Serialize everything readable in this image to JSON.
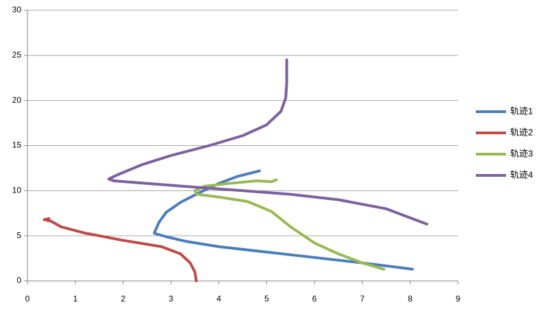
{
  "chart_data": {
    "type": "line",
    "xlim": [
      0,
      9
    ],
    "xticks": [
      0,
      1,
      2,
      3,
      4,
      5,
      6,
      7,
      8,
      9
    ],
    "ylim": [
      0,
      30
    ],
    "yticks": [
      0,
      5,
      10,
      15,
      20,
      25,
      30
    ],
    "grid": true,
    "legend": "right",
    "series": [
      {
        "name": "轨迹1",
        "color": "#4a7ebb",
        "x": [
          8.05,
          7,
          6,
          5,
          4,
          3.3,
          2.9,
          2.7,
          2.65,
          2.75,
          2.9,
          3.2,
          3.6,
          4.0,
          4.4,
          4.85
        ],
        "values": [
          1.3,
          2.0,
          2.6,
          3.2,
          3.8,
          4.4,
          4.9,
          5.2,
          5.3,
          6.5,
          7.6,
          8.7,
          9.8,
          10.8,
          11.6,
          12.2
        ]
      },
      {
        "name": "轨迹2",
        "color": "#be4b48",
        "x": [
          3.53,
          3.5,
          3.4,
          3.2,
          2.8,
          2.0,
          1.2,
          0.7,
          0.5,
          0.35,
          0.45
        ],
        "values": [
          0,
          1,
          2,
          3,
          3.8,
          4.5,
          5.3,
          6.0,
          6.6,
          6.8,
          6.9
        ]
      },
      {
        "name": "轨迹3",
        "color": "#98b954",
        "x": [
          7.45,
          7,
          6.5,
          6,
          5.5,
          5.1,
          4.6,
          4.0,
          3.55,
          3.5,
          3.7,
          4.2,
          4.8,
          5.1,
          5.2
        ],
        "values": [
          1.3,
          2.0,
          3.0,
          4.2,
          6.0,
          7.7,
          8.8,
          9.3,
          9.6,
          10.0,
          10.5,
          10.8,
          11.1,
          11.0,
          11.2
        ]
      },
      {
        "name": "轨迹4",
        "color": "#7d60a0",
        "x": [
          8.35,
          7.5,
          6.5,
          5.5,
          4.5,
          3.5,
          2.5,
          1.8,
          1.7,
          1.9,
          2.4,
          3.0,
          3.8,
          4.5,
          5.0,
          5.3,
          5.4,
          5.42,
          5.42
        ],
        "values": [
          6.3,
          8.0,
          9.0,
          9.6,
          10.0,
          10.4,
          10.8,
          11.1,
          11.3,
          11.8,
          12.9,
          13.9,
          15.0,
          16.1,
          17.3,
          18.8,
          20.3,
          22.0,
          24.5
        ]
      }
    ]
  }
}
